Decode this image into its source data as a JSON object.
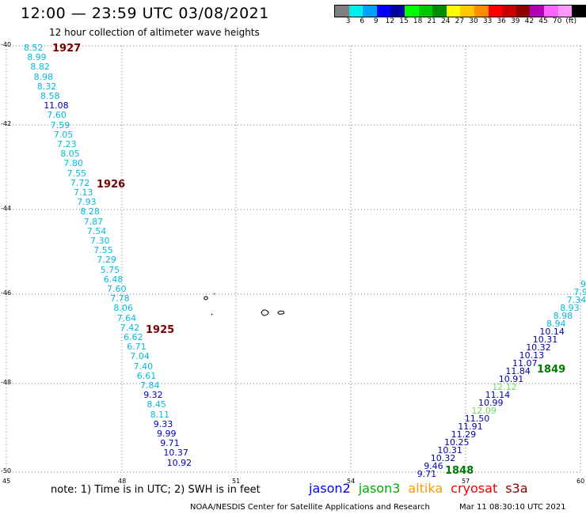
{
  "header": {
    "title": "12:00 — 23:59 UTC 03/08/2021",
    "subtitle": "12 hour collection of altimeter wave heights"
  },
  "legend": {
    "colors": [
      "#7f7f7f",
      "#00eeee",
      "#00a0ff",
      "#0000ff",
      "#0000a0",
      "#00ff00",
      "#00c800",
      "#008c00",
      "#ffff00",
      "#ffc800",
      "#ff8c00",
      "#ff0000",
      "#c80000",
      "#8c0000",
      "#b400b4",
      "#ff64ff",
      "#ff99ff",
      "#000000"
    ],
    "ticks": [
      "3",
      "6",
      "9",
      "12",
      "15",
      "18",
      "21",
      "24",
      "27",
      "30",
      "33",
      "36",
      "39",
      "42",
      "45",
      "70",
      "(ft)"
    ]
  },
  "axes": {
    "lat_labels": [
      "-40",
      "-42",
      "-44",
      "-46",
      "-48",
      "-50"
    ],
    "lon_labels": [
      "45",
      "48",
      "51",
      "54",
      "57",
      "60"
    ]
  },
  "passes": [
    {
      "id": "1927",
      "color": "#7a0000"
    },
    {
      "id": "1926",
      "color": "#7a0000"
    },
    {
      "id": "1925",
      "color": "#7a0000"
    },
    {
      "id": "1849",
      "color": "#007a00"
    },
    {
      "id": "1848",
      "color": "#007a00"
    }
  ],
  "track_left": [
    {
      "v": "8.52",
      "c": "#00bbdd"
    },
    {
      "v": "8.99",
      "c": "#00bbdd"
    },
    {
      "v": "8.82",
      "c": "#00bbdd"
    },
    {
      "v": "8.98",
      "c": "#00bbdd"
    },
    {
      "v": "8.32",
      "c": "#00bbdd"
    },
    {
      "v": "8.58",
      "c": "#00bbdd"
    },
    {
      "v": "11.08",
      "c": "#0000aa"
    },
    {
      "v": "7.60",
      "c": "#00bbdd"
    },
    {
      "v": "7.59",
      "c": "#00bbdd"
    },
    {
      "v": "7.05",
      "c": "#00bbdd"
    },
    {
      "v": "7.23",
      "c": "#00bbdd"
    },
    {
      "v": "8.05",
      "c": "#00bbdd"
    },
    {
      "v": "7.80",
      "c": "#00bbdd"
    },
    {
      "v": "7.55",
      "c": "#00bbdd"
    },
    {
      "v": "7.72",
      "c": "#00bbdd"
    },
    {
      "v": "7.13",
      "c": "#00bbdd"
    },
    {
      "v": "7.93",
      "c": "#00bbdd"
    },
    {
      "v": "8.28",
      "c": "#00bbdd"
    },
    {
      "v": "7.87",
      "c": "#00bbdd"
    },
    {
      "v": "7.54",
      "c": "#00bbdd"
    },
    {
      "v": "7.30",
      "c": "#00bbdd"
    },
    {
      "v": "7.55",
      "c": "#00bbdd"
    },
    {
      "v": "7.29",
      "c": "#00bbdd"
    },
    {
      "v": "5.75",
      "c": "#00bbdd"
    },
    {
      "v": "6.48",
      "c": "#00bbdd"
    },
    {
      "v": "7.60",
      "c": "#00bbdd"
    },
    {
      "v": "7.78",
      "c": "#00bbdd"
    },
    {
      "v": "8.06",
      "c": "#00bbdd"
    },
    {
      "v": "7.64",
      "c": "#00bbdd"
    },
    {
      "v": "7.42",
      "c": "#00bbdd"
    },
    {
      "v": "6.62",
      "c": "#00bbdd"
    },
    {
      "v": "6.71",
      "c": "#00bbdd"
    },
    {
      "v": "7.04",
      "c": "#00bbdd"
    },
    {
      "v": "7.40",
      "c": "#00bbdd"
    },
    {
      "v": "6.61",
      "c": "#00bbdd"
    },
    {
      "v": "7.84",
      "c": "#00bbdd"
    },
    {
      "v": "9.32",
      "c": "#0000cc"
    },
    {
      "v": "8.45",
      "c": "#00bbdd"
    },
    {
      "v": "8.11",
      "c": "#00bbdd"
    },
    {
      "v": "9.33",
      "c": "#0000cc"
    },
    {
      "v": "9.99",
      "c": "#0000cc"
    },
    {
      "v": "9.71",
      "c": "#0000cc"
    },
    {
      "v": "10.37",
      "c": "#0000aa"
    },
    {
      "v": "10.92",
      "c": "#0000aa"
    }
  ],
  "track_right": [
    {
      "v": "9",
      "c": "#00bbdd"
    },
    {
      "v": "7.9",
      "c": "#00bbdd"
    },
    {
      "v": "7.34",
      "c": "#00bbdd"
    },
    {
      "v": "8.93",
      "c": "#00bbdd"
    },
    {
      "v": "8.98",
      "c": "#00bbdd"
    },
    {
      "v": "8.94",
      "c": "#00bbdd"
    },
    {
      "v": "10.14",
      "c": "#0000aa"
    },
    {
      "v": "10.31",
      "c": "#0000aa"
    },
    {
      "v": "10.32",
      "c": "#0000aa"
    },
    {
      "v": "10.13",
      "c": "#0000aa"
    },
    {
      "v": "11.07",
      "c": "#0000aa"
    },
    {
      "v": "11.84",
      "c": "#0000aa"
    },
    {
      "v": "10.91",
      "c": "#0000aa"
    },
    {
      "v": "12.12",
      "c": "#66dd66"
    },
    {
      "v": "11.14",
      "c": "#0000aa"
    },
    {
      "v": "10.99",
      "c": "#0000aa"
    },
    {
      "v": "12.09",
      "c": "#66dd66"
    },
    {
      "v": "11.50",
      "c": "#0000aa"
    },
    {
      "v": "11.91",
      "c": "#0000aa"
    },
    {
      "v": "11.29",
      "c": "#0000aa"
    },
    {
      "v": "10.25",
      "c": "#0000aa"
    },
    {
      "v": "10.31",
      "c": "#0000aa"
    },
    {
      "v": "10.32",
      "c": "#0000aa"
    },
    {
      "v": "9.46",
      "c": "#0000cc"
    },
    {
      "v": "9.71",
      "c": "#0000cc"
    }
  ],
  "notes": {
    "note": "note: 1) Time is in UTC; 2) SWH is in feet",
    "satellites": [
      {
        "name": "jason2",
        "color": "#0000ff"
      },
      {
        "name": "jason3",
        "color": "#00aa00"
      },
      {
        "name": "altika",
        "color": "#ff9900"
      },
      {
        "name": "cryosat",
        "color": "#ee0000"
      },
      {
        "name": "s3a",
        "color": "#880000"
      }
    ],
    "footer_left": "NOAA/NESDIS Center for Satellite Applications and Research",
    "footer_right": "Mar 11 08:30:10 UTC 2021"
  }
}
